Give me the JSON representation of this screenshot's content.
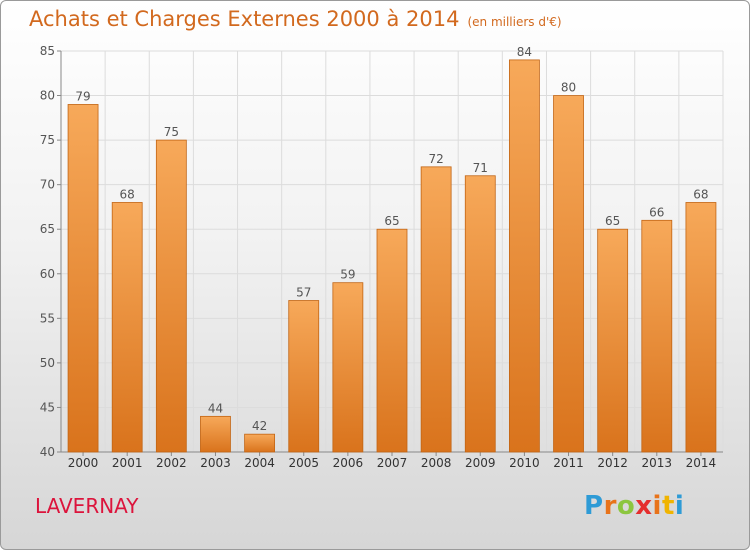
{
  "title": "Achats et Charges Externes 2000 à 2014",
  "unit": "(en milliers d'€)",
  "town": "LAVERNAY",
  "logo": {
    "letters": [
      "P",
      "r",
      "o",
      "x",
      "i",
      "t",
      "i"
    ],
    "colors": [
      "#2e9bd6",
      "#e8731a",
      "#8cc63f",
      "#e52e2e",
      "#e8731a",
      "#f0b400",
      "#2e9bd6"
    ]
  },
  "colors": {
    "bar_top": "#f7a95a",
    "bar_bottom": "#d9731c",
    "bar_edge": "#c26514",
    "title": "#d2691e",
    "town": "#dc143c"
  },
  "chart_data": {
    "type": "bar",
    "categories": [
      "2000",
      "2001",
      "2002",
      "2003",
      "2004",
      "2005",
      "2006",
      "2007",
      "2008",
      "2009",
      "2010",
      "2011",
      "2012",
      "2013",
      "2014"
    ],
    "values": [
      79,
      68,
      75,
      44,
      42,
      57,
      59,
      65,
      72,
      71,
      84,
      80,
      65,
      66,
      68
    ],
    "ylim": [
      40,
      85
    ],
    "yticks": [
      40,
      45,
      50,
      55,
      60,
      65,
      70,
      75,
      80,
      85
    ],
    "grid": true,
    "data_labels": true
  }
}
